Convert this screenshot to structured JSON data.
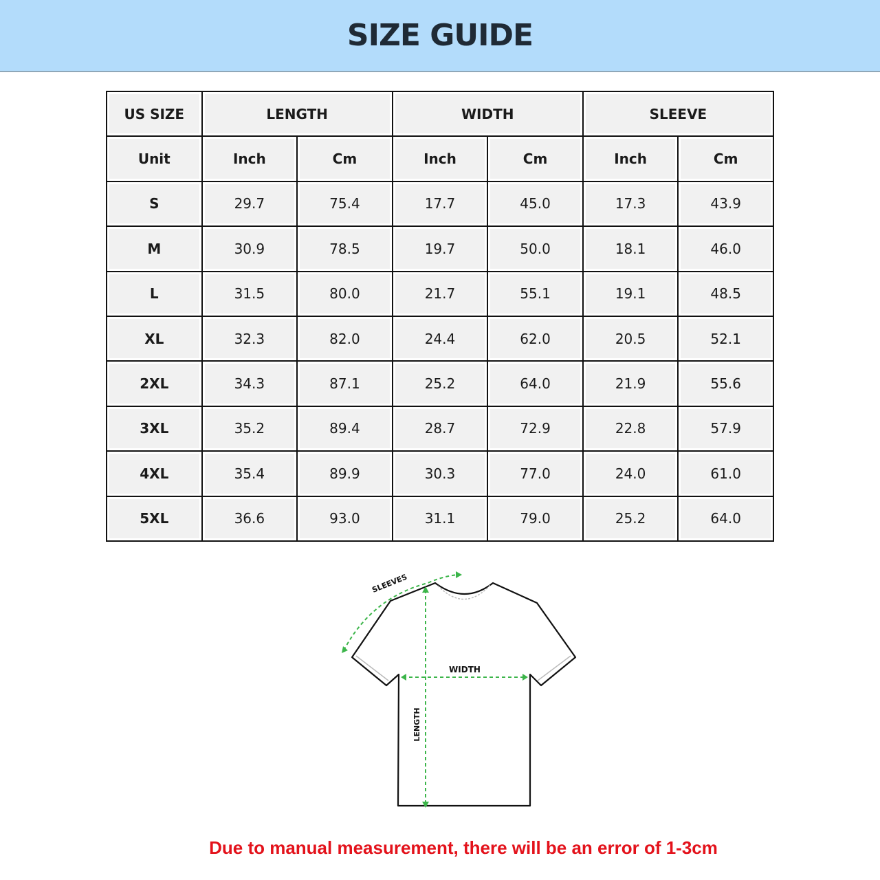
{
  "title": "SIZE GUIDE",
  "table": {
    "group_headers": [
      "US SIZE",
      "LENGTH",
      "WIDTH",
      "SLEEVE"
    ],
    "unit_row": [
      "Unit",
      "Inch",
      "Cm",
      "Inch",
      "Cm",
      "Inch",
      "Cm"
    ],
    "rows": [
      [
        "S",
        "29.7",
        "75.4",
        "17.7",
        "45.0",
        "17.3",
        "43.9"
      ],
      [
        "M",
        "30.9",
        "78.5",
        "19.7",
        "50.0",
        "18.1",
        "46.0"
      ],
      [
        "L",
        "31.5",
        "80.0",
        "21.7",
        "55.1",
        "19.1",
        "48.5"
      ],
      [
        "XL",
        "32.3",
        "82.0",
        "24.4",
        "62.0",
        "20.5",
        "52.1"
      ],
      [
        "2XL",
        "34.3",
        "87.1",
        "25.2",
        "64.0",
        "21.9",
        "55.6"
      ],
      [
        "3XL",
        "35.2",
        "89.4",
        "28.7",
        "72.9",
        "22.8",
        "57.9"
      ],
      [
        "4XL",
        "35.4",
        "89.9",
        "30.3",
        "77.0",
        "24.0",
        "61.0"
      ],
      [
        "5XL",
        "36.6",
        "93.0",
        "31.1",
        "79.0",
        "25.2",
        "64.0"
      ]
    ]
  },
  "diagram": {
    "sleeves_label": "SLEEVES",
    "width_label": "WIDTH",
    "length_label": "LENGTH",
    "measure_color": "#3cb54a"
  },
  "note": "Due to manual measurement, there will be an error of 1-3cm",
  "colors": {
    "banner": "#b3dcfb",
    "note": "#e3121b"
  }
}
